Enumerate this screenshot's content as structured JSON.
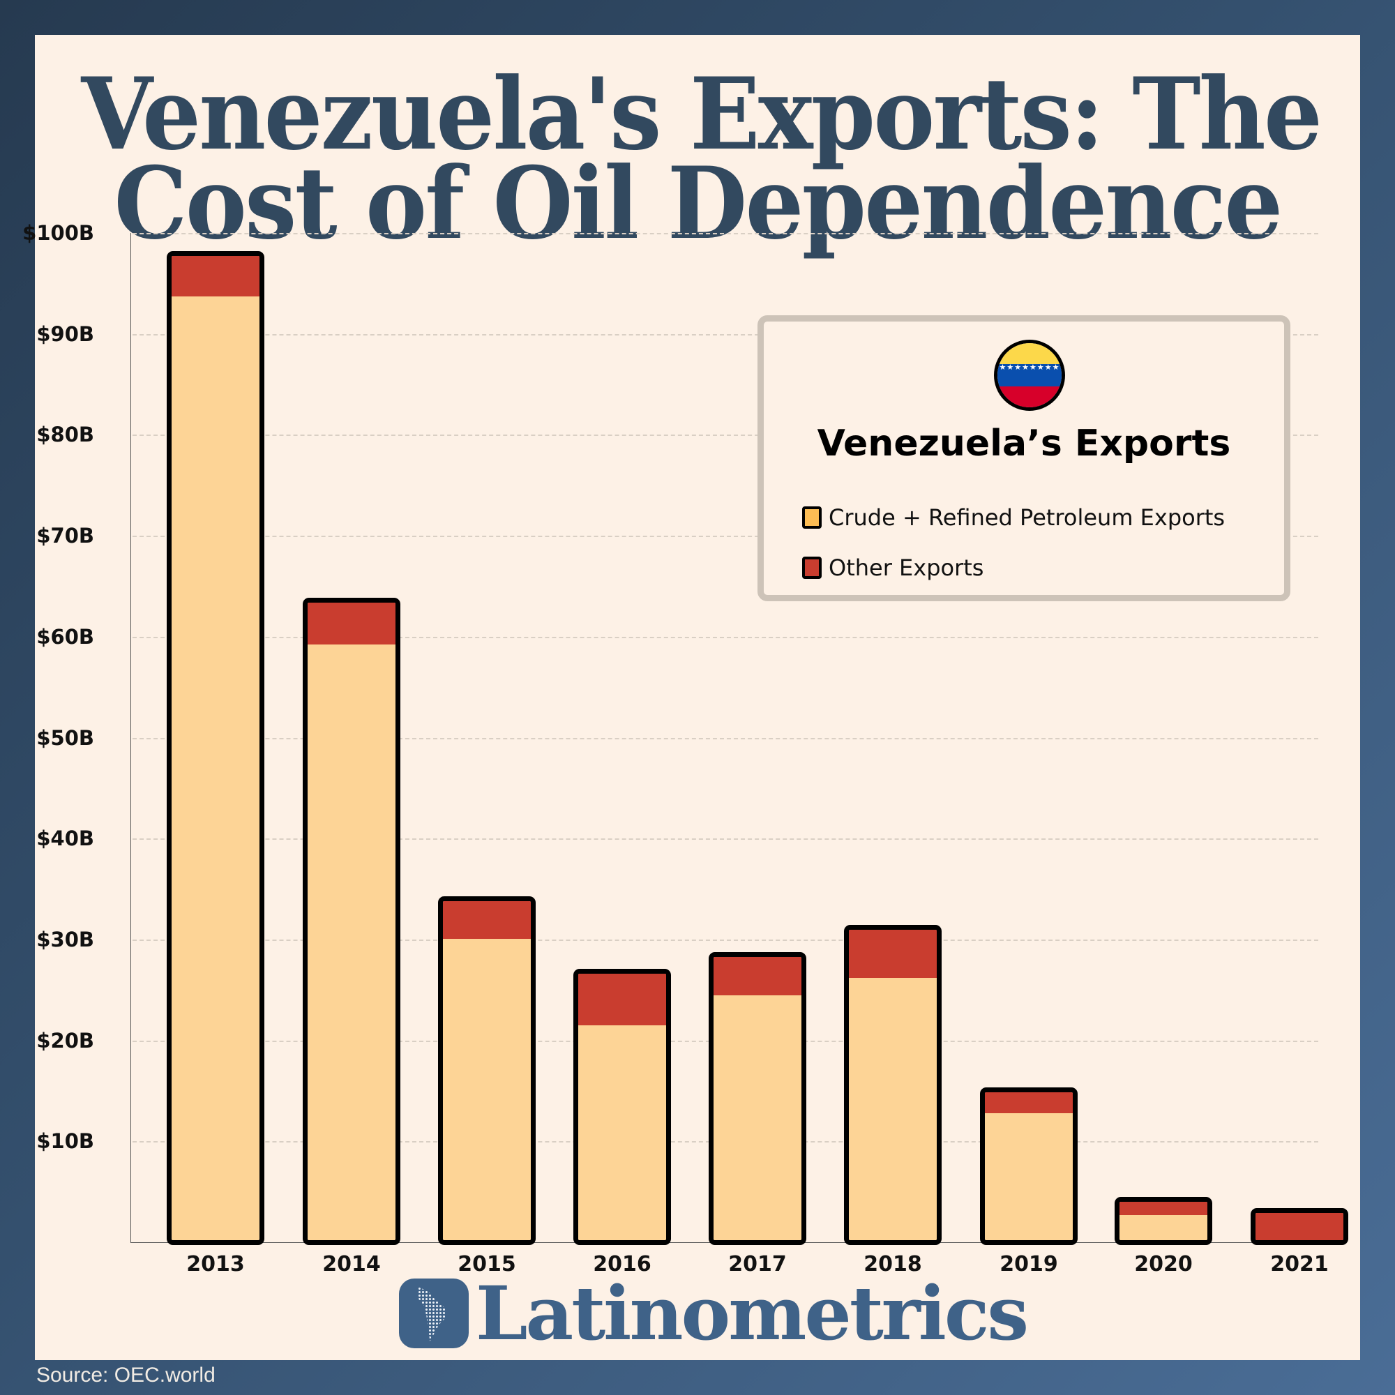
{
  "title": {
    "line1": "Venezuela's Exports: The",
    "line2": "Cost of Oil Dependence"
  },
  "legend": {
    "title": "Venezuela’s Exports",
    "flag_icon": "venezuela-flag-icon",
    "items": [
      {
        "label": "Crude + Refined Petroleum Exports",
        "color": "#fdbd54"
      },
      {
        "label": "Other Exports",
        "color": "#c93d2f"
      }
    ]
  },
  "y_ticks": [
    "$100B",
    "$90B",
    "$80B",
    "$70B",
    "$60B",
    "$50B",
    "$40B",
    "$30B",
    "$20B",
    "$10B"
  ],
  "x_labels": [
    "2013",
    "2014",
    "2015",
    "2016",
    "2017",
    "2018",
    "2019",
    "2020",
    "2021"
  ],
  "colors": {
    "petroleum": "#fdd496",
    "other": "#c93d2f",
    "title": "#32495f",
    "brand": "#3f6288",
    "background": "#fdf1e6"
  },
  "brand": {
    "name": "Latinometrics"
  },
  "source": "Source: OEC.world",
  "chart_data": {
    "type": "bar",
    "stacked": true,
    "title": "Venezuela's Exports: The Cost of Oil Dependence",
    "xlabel": "",
    "ylabel": "",
    "ylim": [
      0,
      100
    ],
    "y_unit": "USD billions",
    "categories": [
      "2013",
      "2014",
      "2015",
      "2016",
      "2017",
      "2018",
      "2019",
      "2020",
      "2021"
    ],
    "series": [
      {
        "name": "Crude + Refined Petroleum Exports",
        "values": [
          93.9,
          59.4,
          30.3,
          21.7,
          24.7,
          26.4,
          13.0,
          2.9,
          0.0
        ]
      },
      {
        "name": "Other Exports",
        "values": [
          4.0,
          4.2,
          3.7,
          5.1,
          3.8,
          4.8,
          2.1,
          1.3,
          3.1
        ]
      }
    ],
    "totals": [
      97.9,
      63.6,
      34.0,
      26.8,
      28.5,
      31.2,
      15.1,
      4.2,
      3.1
    ],
    "legend_position": "upper right (inset box)",
    "grid": "horizontal dashed",
    "source": "OEC.world"
  }
}
